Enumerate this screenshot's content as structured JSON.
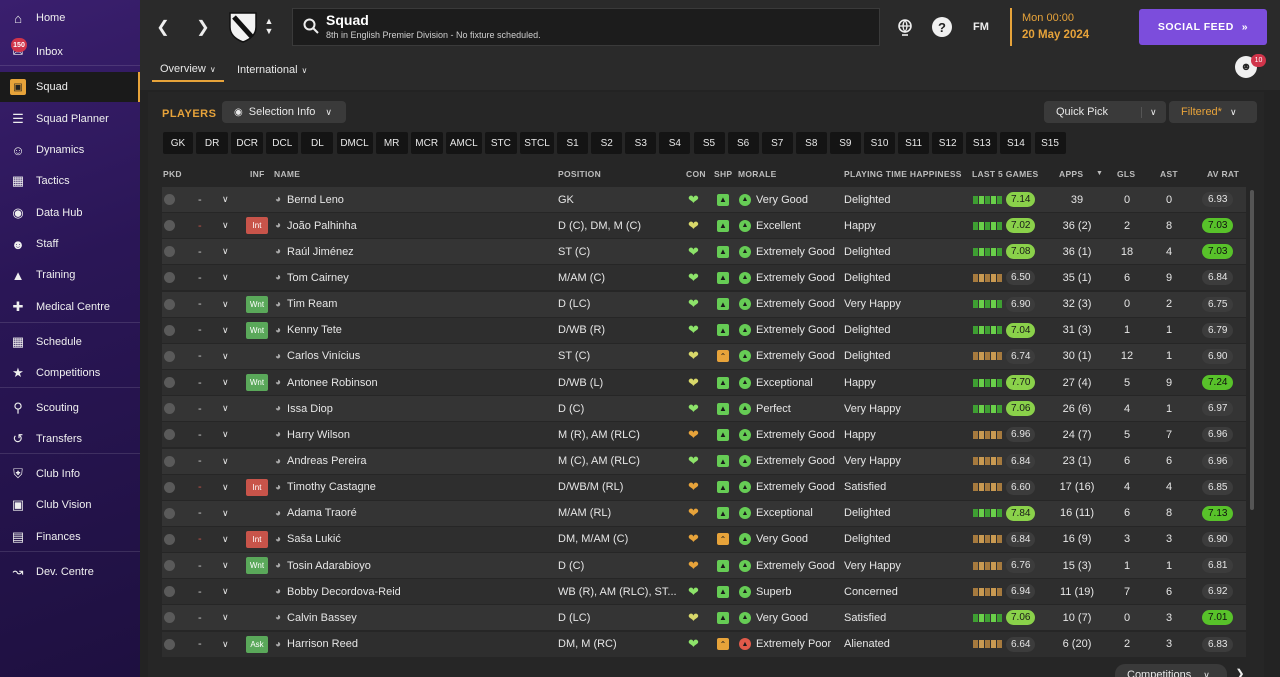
{
  "sidebar": {
    "items": [
      {
        "label": "Home",
        "icon": "home-icon"
      },
      {
        "label": "Inbox",
        "icon": "inbox-icon",
        "badge": "150"
      },
      {
        "label": "Squad",
        "icon": "shirt-icon",
        "active": true
      },
      {
        "label": "Squad Planner",
        "icon": "clipboard-icon"
      },
      {
        "label": "Dynamics",
        "icon": "people-icon"
      },
      {
        "label": "Tactics",
        "icon": "tactics-board-icon"
      },
      {
        "label": "Data Hub",
        "icon": "data-hub-icon"
      },
      {
        "label": "Staff",
        "icon": "staff-icon"
      },
      {
        "label": "Training",
        "icon": "training-cone-icon"
      },
      {
        "label": "Medical Centre",
        "icon": "medical-kit-icon"
      },
      {
        "label": "Schedule",
        "icon": "calendar-icon"
      },
      {
        "label": "Competitions",
        "icon": "trophy-icon"
      },
      {
        "label": "Scouting",
        "icon": "search-icon"
      },
      {
        "label": "Transfers",
        "icon": "transfer-arrows-icon"
      },
      {
        "label": "Club Info",
        "icon": "shield-icon"
      },
      {
        "label": "Club Vision",
        "icon": "briefcase-icon"
      },
      {
        "label": "Finances",
        "icon": "money-icon"
      },
      {
        "label": "Dev. Centre",
        "icon": "dev-centre-icon"
      }
    ]
  },
  "header": {
    "title": "Squad",
    "subtitle": "8th in English Premier Division - No fixture scheduled.",
    "time": "Mon 00:00",
    "date": "20 May 2024",
    "social_feed": "SOCIAL FEED",
    "fm_label": "FM",
    "help": "?",
    "notif_count": "10",
    "tabs": [
      "Overview",
      "International"
    ]
  },
  "toolbar": {
    "section_title": "PLAYERS",
    "selection_info": "Selection Info",
    "quick_pick": "Quick Pick",
    "filtered": "Filtered*",
    "competitions": "Competitions"
  },
  "positions": [
    "GK",
    "DR",
    "DCR",
    "DCL",
    "DL",
    "DMCL",
    "MR",
    "MCR",
    "AMCL",
    "STC",
    "STCL",
    "S1",
    "S2",
    "S3",
    "S4",
    "S5",
    "S6",
    "S7",
    "S8",
    "S9",
    "S10",
    "S11",
    "S12",
    "S13",
    "S14",
    "S15"
  ],
  "columns": {
    "pkd": "PKD",
    "inf": "INF",
    "name": "NAME",
    "position": "POSITION",
    "con": "CON",
    "shp": "SHP",
    "morale": "MORALE",
    "pth": "PLAYING TIME HAPPINESS",
    "last5": "LAST 5 GAMES",
    "apps": "APPS",
    "gls": "GLS",
    "ast": "AST",
    "avrat": "AV RAT"
  },
  "colors": {
    "accent": "#e7a33a",
    "sidebar": "#2a1656",
    "social": "#7c4ddc",
    "good": "#8ad14a",
    "inj": "#c8544a",
    "wnt": "#5aa85a"
  },
  "players": [
    {
      "sel": "-",
      "inf": "",
      "name": "Bernd Leno",
      "pos": "GK",
      "con": "#8de36a",
      "shp": "#66cc55",
      "mor": "#66cc55",
      "morale": "Very Good",
      "pth": "Delighted",
      "l5": "ggggg",
      "l5r": "7.14",
      "l5g": true,
      "apps": "39",
      "gls": "0",
      "ast": "0",
      "av": "6.93",
      "avg": false
    },
    {
      "sel": "-",
      "inf": "Int",
      "name": "João Palhinha",
      "pos": "D (C), DM, M (C)",
      "con": "#d8d86a",
      "shp": "#66cc55",
      "mor": "#66cc55",
      "morale": "Excellent",
      "pth": "Happy",
      "l5": "ggggg",
      "l5r": "7.02",
      "l5g": true,
      "apps": "36 (2)",
      "gls": "2",
      "ast": "8",
      "av": "7.03",
      "avg": true
    },
    {
      "sel": "-",
      "inf": "",
      "name": "Raúl Jiménez",
      "pos": "ST (C)",
      "con": "#8de36a",
      "shp": "#66cc55",
      "mor": "#66cc55",
      "morale": "Extremely Good",
      "pth": "Delighted",
      "l5": "ggggg",
      "l5r": "7.08",
      "l5g": true,
      "apps": "36 (1)",
      "gls": "18",
      "ast": "4",
      "av": "7.03",
      "avg": true
    },
    {
      "sel": "-",
      "inf": "",
      "name": "Tom Cairney",
      "pos": "M/AM (C)",
      "con": "#8de36a",
      "shp": "#66cc55",
      "mor": "#66cc55",
      "morale": "Extremely Good",
      "pth": "Delighted",
      "l5": "ooooo",
      "l5r": "6.50",
      "l5g": false,
      "apps": "35 (1)",
      "gls": "6",
      "ast": "9",
      "av": "6.84",
      "avg": false
    },
    {
      "sel": "-",
      "inf": "Wnt",
      "name": "Tim Ream",
      "pos": "D (LC)",
      "con": "#8de36a",
      "shp": "#66cc55",
      "mor": "#66cc55",
      "morale": "Extremely Good",
      "pth": "Very Happy",
      "l5": "ggggg",
      "l5r": "6.90",
      "l5g": false,
      "apps": "32 (3)",
      "gls": "0",
      "ast": "2",
      "av": "6.75",
      "avg": false
    },
    {
      "sel": "-",
      "inf": "Wnt",
      "name": "Kenny Tete",
      "pos": "D/WB (R)",
      "con": "#8de36a",
      "shp": "#66cc55",
      "mor": "#66cc55",
      "morale": "Extremely Good",
      "pth": "Delighted",
      "l5": "ggggg",
      "l5r": "7.04",
      "l5g": true,
      "apps": "31 (3)",
      "gls": "1",
      "ast": "1",
      "av": "6.79",
      "avg": false
    },
    {
      "sel": "-",
      "inf": "",
      "name": "Carlos Vinícius",
      "pos": "ST (C)",
      "con": "#d8d86a",
      "shp": "#e7a33a",
      "mor": "#66cc55",
      "morale": "Extremely Good",
      "pth": "Delighted",
      "l5": "ooooo",
      "l5r": "6.74",
      "l5g": false,
      "apps": "30 (1)",
      "gls": "12",
      "ast": "1",
      "av": "6.90",
      "avg": false
    },
    {
      "sel": "-",
      "inf": "Wnt",
      "name": "Antonee Robinson",
      "pos": "D/WB (L)",
      "con": "#d8d86a",
      "shp": "#66cc55",
      "mor": "#66cc55",
      "morale": "Exceptional",
      "pth": "Happy",
      "l5": "ggggg",
      "l5r": "7.70",
      "l5g": true,
      "apps": "27 (4)",
      "gls": "5",
      "ast": "9",
      "av": "7.24",
      "avg": true
    },
    {
      "sel": "-",
      "inf": "",
      "name": "Issa Diop",
      "pos": "D (C)",
      "con": "#8de36a",
      "shp": "#66cc55",
      "mor": "#66cc55",
      "morale": "Perfect",
      "pth": "Very Happy",
      "l5": "ggggg",
      "l5r": "7.06",
      "l5g": true,
      "apps": "26 (6)",
      "gls": "4",
      "ast": "1",
      "av": "6.97",
      "avg": false
    },
    {
      "sel": "-",
      "inf": "",
      "name": "Harry Wilson",
      "pos": "M (R), AM (RLC)",
      "con": "#e7a33a",
      "shp": "#66cc55",
      "mor": "#66cc55",
      "morale": "Extremely Good",
      "pth": "Happy",
      "l5": "ooooo",
      "l5r": "6.96",
      "l5g": false,
      "apps": "24 (7)",
      "gls": "5",
      "ast": "7",
      "av": "6.96",
      "avg": false
    },
    {
      "sel": "-",
      "inf": "",
      "name": "Andreas Pereira",
      "pos": "M (C), AM (RLC)",
      "con": "#8de36a",
      "shp": "#66cc55",
      "mor": "#66cc55",
      "morale": "Extremely Good",
      "pth": "Very Happy",
      "l5": "ooooo",
      "l5r": "6.84",
      "l5g": false,
      "apps": "23 (1)",
      "gls": "6",
      "ast": "6",
      "av": "6.96",
      "avg": false
    },
    {
      "sel": "-",
      "inf": "Int",
      "name": "Timothy Castagne",
      "pos": "D/WB/M (RL)",
      "con": "#e7a33a",
      "shp": "#66cc55",
      "mor": "#66cc55",
      "morale": "Extremely Good",
      "pth": "Satisfied",
      "l5": "ooooo",
      "l5r": "6.60",
      "l5g": false,
      "apps": "17 (16)",
      "gls": "4",
      "ast": "4",
      "av": "6.85",
      "avg": false
    },
    {
      "sel": "-",
      "inf": "",
      "name": "Adama Traoré",
      "pos": "M/AM (RL)",
      "con": "#e7a33a",
      "shp": "#66cc55",
      "mor": "#66cc55",
      "morale": "Exceptional",
      "pth": "Delighted",
      "l5": "ggggg",
      "l5r": "7.84",
      "l5g": true,
      "apps": "16 (11)",
      "gls": "6",
      "ast": "8",
      "av": "7.13",
      "avg": true
    },
    {
      "sel": "-",
      "inf": "Int",
      "name": "Saša Lukić",
      "pos": "DM, M/AM (C)",
      "con": "#e7a33a",
      "shp": "#e7a33a",
      "mor": "#66cc55",
      "morale": "Very Good",
      "pth": "Delighted",
      "l5": "ooooo",
      "l5r": "6.84",
      "l5g": false,
      "apps": "16 (9)",
      "gls": "3",
      "ast": "3",
      "av": "6.90",
      "avg": false
    },
    {
      "sel": "-",
      "inf": "Wnt",
      "name": "Tosin Adarabioyo",
      "pos": "D (C)",
      "con": "#e7a33a",
      "shp": "#66cc55",
      "mor": "#66cc55",
      "morale": "Extremely Good",
      "pth": "Very Happy",
      "l5": "ooooo",
      "l5r": "6.76",
      "l5g": false,
      "apps": "15 (3)",
      "gls": "1",
      "ast": "1",
      "av": "6.81",
      "avg": false
    },
    {
      "sel": "-",
      "inf": "",
      "name": "Bobby Decordova-Reid",
      "pos": "WB (R), AM (RLC), ST...",
      "con": "#8de36a",
      "shp": "#66cc55",
      "mor": "#66cc55",
      "morale": "Superb",
      "pth": "Concerned",
      "l5": "ooooo",
      "l5r": "6.94",
      "l5g": false,
      "apps": "11 (19)",
      "gls": "7",
      "ast": "6",
      "av": "6.92",
      "avg": false
    },
    {
      "sel": "-",
      "inf": "",
      "name": "Calvin Bassey",
      "pos": "D (LC)",
      "con": "#d8d86a",
      "shp": "#66cc55",
      "mor": "#66cc55",
      "morale": "Very Good",
      "pth": "Satisfied",
      "l5": "ggggg",
      "l5r": "7.06",
      "l5g": true,
      "apps": "10 (7)",
      "gls": "0",
      "ast": "3",
      "av": "7.01",
      "avg": true
    },
    {
      "sel": "-",
      "inf": "Ask",
      "name": "Harrison Reed",
      "pos": "DM, M (RC)",
      "con": "#8de36a",
      "shp": "#e7a33a",
      "mor": "#e05a4a",
      "morale": "Extremely Poor",
      "pth": "Alienated",
      "l5": "ooooo",
      "l5r": "6.64",
      "l5g": false,
      "apps": "6 (20)",
      "gls": "2",
      "ast": "3",
      "av": "6.83",
      "avg": false
    }
  ]
}
